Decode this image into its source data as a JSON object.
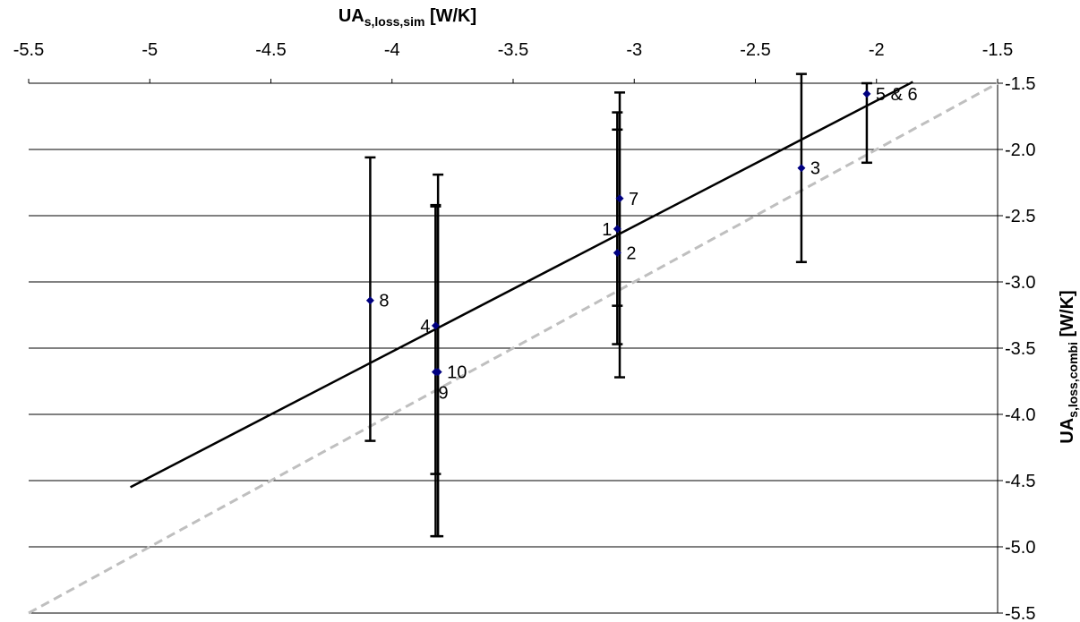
{
  "chart_data": {
    "type": "scatter",
    "title": "",
    "xlabel": {
      "main": "UA",
      "sub": "s,loss,sim",
      "unit": " [W/K]"
    },
    "ylabel": {
      "main": "UA",
      "sub": "s,loss,combi",
      "unit": " [W/K]"
    },
    "xaxis_position": "top",
    "yaxis_position": "right",
    "xlim": [
      -5.5,
      -1.5
    ],
    "ylim": [
      -5.5,
      -1.5
    ],
    "xticks": [
      "-5.5",
      "-5",
      "-4.5",
      "-4",
      "-3.5",
      "-3",
      "-2.5",
      "-2",
      "-1.5"
    ],
    "yticks": [
      "-1.5",
      "-2.0",
      "-2.5",
      "-3.0",
      "-3.5",
      "-4.0",
      "-4.5",
      "-5.0",
      "-5.5"
    ],
    "grid": "horizontal",
    "marker_color": "#000080",
    "points": [
      {
        "label": "1",
        "x": -3.07,
        "y": -2.6,
        "err_low": -3.47,
        "err_high": -1.72,
        "label_side": "left"
      },
      {
        "label": "2",
        "x": -3.07,
        "y": -2.78,
        "err_low": -3.18,
        "err_high": -1.85,
        "label_side": "right"
      },
      {
        "label": "3",
        "x": -2.31,
        "y": -2.14,
        "err_low": -2.85,
        "err_high": -1.43,
        "label_side": "right"
      },
      {
        "label": "4",
        "x": -3.82,
        "y": -3.33,
        "err_low": -4.92,
        "err_high": -2.42,
        "label_side": "left"
      },
      {
        "label": "5 & 6",
        "x": -2.04,
        "y": -1.58,
        "err_low": -2.1,
        "err_high": -1.5,
        "label_side": "right"
      },
      {
        "label": "7",
        "x": -3.06,
        "y": -2.37,
        "err_low": -3.72,
        "err_high": -1.57,
        "label_side": "right"
      },
      {
        "label": "8",
        "x": -4.09,
        "y": -3.14,
        "err_low": -4.2,
        "err_high": -2.06,
        "label_side": "right"
      },
      {
        "label": "9",
        "x": -3.82,
        "y": -3.68,
        "err_low": -4.45,
        "err_high": -2.43,
        "label_side": "below-right"
      },
      {
        "label": "10",
        "x": -3.81,
        "y": -3.68,
        "err_low": -4.92,
        "err_high": -2.19,
        "label_side": "right"
      }
    ],
    "series": [
      {
        "type": "line",
        "style": "solid",
        "color": "#000000",
        "x": [
          -5.08,
          -1.85
        ],
        "y": [
          -4.55,
          -1.49
        ]
      },
      {
        "type": "line",
        "style": "dashed",
        "color": "#bfbfbf",
        "x": [
          -5.5,
          -1.5
        ],
        "y": [
          -5.5,
          -1.5
        ]
      }
    ]
  }
}
